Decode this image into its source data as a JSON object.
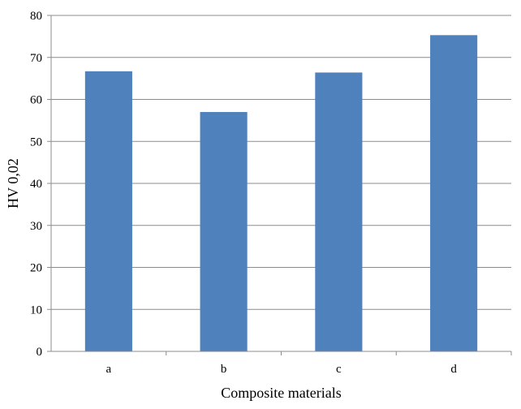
{
  "chart_data": {
    "type": "bar",
    "title": "",
    "xlabel": "Composite materials",
    "ylabel": "HV 0,02",
    "categories": [
      "a",
      "b",
      "c",
      "d"
    ],
    "series": [
      {
        "values": [
          66.7,
          57.0,
          66.4,
          75.3
        ]
      }
    ],
    "ylim": [
      0,
      80
    ],
    "yticks": [
      "0",
      "10",
      "20",
      "30",
      "40",
      "50",
      "60",
      "70",
      "80"
    ],
    "grid": "horizontal",
    "legend": "none",
    "bar_color": "#4f81bd"
  }
}
